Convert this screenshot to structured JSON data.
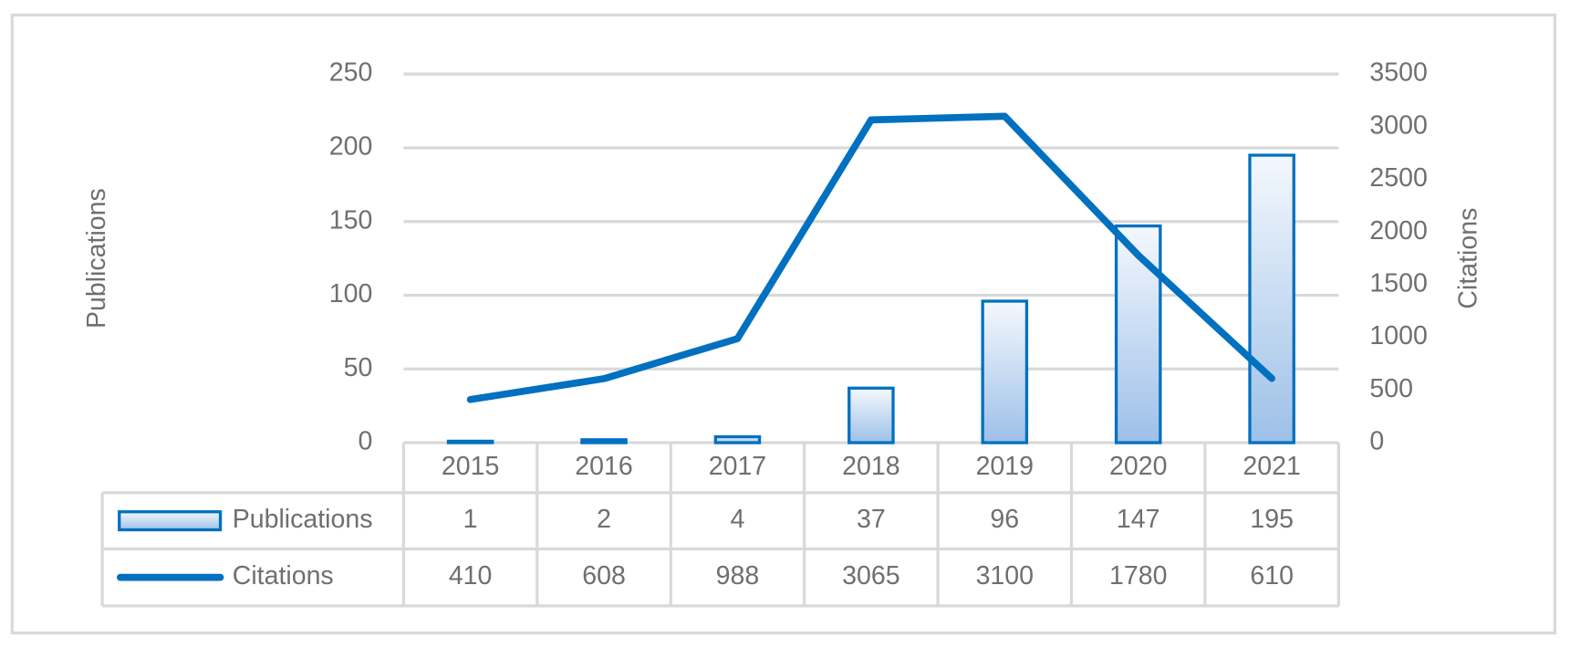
{
  "chart_data": {
    "type": "bar",
    "ylabel": "Publications",
    "y2label": "Citations",
    "categories": [
      "2015",
      "2016",
      "2017",
      "2018",
      "2019",
      "2020",
      "2021"
    ],
    "series": [
      {
        "name": "Publications",
        "type": "bar",
        "color": "#0070c0",
        "values": [
          1,
          2,
          4,
          37,
          96,
          147,
          195
        ]
      },
      {
        "name": "Citations",
        "type": "line",
        "axis": "y2",
        "color": "#0070c0",
        "values": [
          410,
          608,
          988,
          3065,
          3100,
          1780,
          610
        ]
      }
    ],
    "ylim": [
      0,
      250
    ],
    "yticks": [
      0,
      50,
      100,
      150,
      200,
      250
    ],
    "y2lim": [
      0,
      3500
    ],
    "y2ticks": [
      0,
      500,
      1000,
      1500,
      2000,
      2500,
      3000,
      3500
    ],
    "grid": true,
    "data_table": true
  }
}
